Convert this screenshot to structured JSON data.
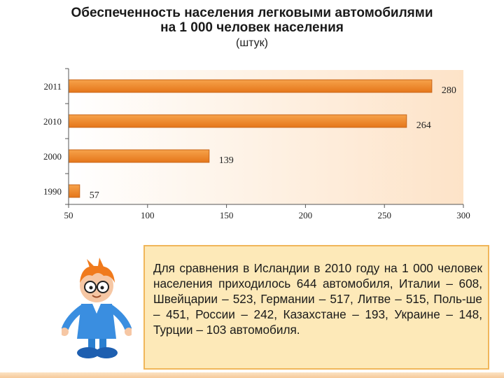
{
  "header": {
    "title_line1": "Обеспеченность населения легковыми автомобилями",
    "title_line2": "на 1 000 человек населения",
    "unit": "(штук)"
  },
  "chart_data": {
    "type": "bar",
    "orientation": "horizontal",
    "categories": [
      "2011",
      "2010",
      "2000",
      "1990"
    ],
    "values": [
      280,
      264,
      139,
      57
    ],
    "value_labels": [
      "280",
      "264",
      "139",
      "57"
    ],
    "xlim": [
      50,
      300
    ],
    "xticks": [
      50,
      100,
      150,
      200,
      250,
      300
    ],
    "xtick_labels": [
      "50",
      "100",
      "150",
      "200",
      "250",
      "300"
    ],
    "title": "Обеспеченность населения легковыми автомобилями на 1 000 человек населения",
    "xlabel": "",
    "ylabel": "",
    "grid": false,
    "bar_color": "#f08a24"
  },
  "note": {
    "text": "Для сравнения в Исландии в 2010 году на 1 000 человек населения приходилось 644 автомобиля, Италии – 608, Швейцарии – 523, Германии – 517, Литве – 515, Поль-ше – 451, России – 242, Казахстане – 193, Украине – 148, Турции – 103 автомобиля."
  },
  "colors": {
    "bar": "#f08a24",
    "bar_edge": "#c8661a",
    "plot_bg_start": "#ffffff",
    "plot_bg_end": "#fde3c8",
    "note_bg": "#fde9b8",
    "note_border": "#f0b65a"
  },
  "illustration": {
    "icon": "cartoon-boy-with-glasses-icon"
  }
}
